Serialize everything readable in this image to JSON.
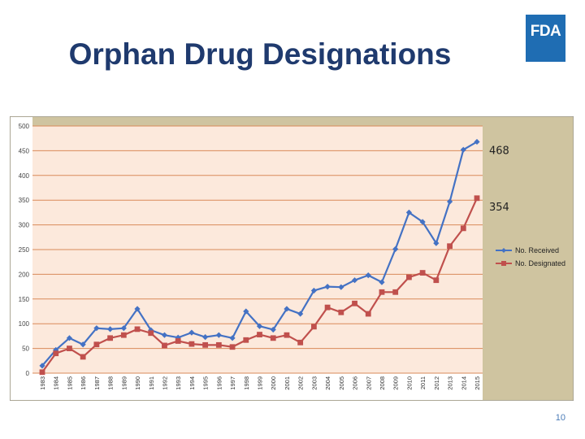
{
  "page": {
    "title": "Orphan Drug Designations",
    "logo_text": "FDA",
    "page_number": "10"
  },
  "colors": {
    "title": "#1f3a6e",
    "logo_bg": "#1f6db3",
    "frame_bg": "#cfc4a0",
    "plot_bg": "#fce9dc",
    "gridline": "#d98a5a",
    "received": "#4472c4",
    "designated": "#c0504d"
  },
  "chart_data": {
    "type": "line",
    "title": "",
    "xlabel": "",
    "ylabel": "",
    "ylim": [
      0,
      500
    ],
    "yticks": [
      0,
      50,
      100,
      150,
      200,
      250,
      300,
      350,
      400,
      450,
      500
    ],
    "grid": true,
    "legend": "right",
    "categories": [
      "1983",
      "1984",
      "1985",
      "1986",
      "1987",
      "1988",
      "1989",
      "1990",
      "1991",
      "1992",
      "1993",
      "1994",
      "1995",
      "1996",
      "1997",
      "1998",
      "1999",
      "2000",
      "2001",
      "2002",
      "2003",
      "2004",
      "2005",
      "2006",
      "2007",
      "2008",
      "2009",
      "2010",
      "2011",
      "2012",
      "2013",
      "2014",
      "2015"
    ],
    "series": [
      {
        "name": "No. Received",
        "marker": "diamond",
        "values": [
          15,
          47,
          71,
          58,
          91,
          89,
          91,
          130,
          87,
          77,
          72,
          82,
          73,
          77,
          71,
          125,
          95,
          88,
          130,
          120,
          167,
          175,
          174,
          188,
          198,
          184,
          251,
          325,
          306,
          263,
          347,
          452,
          468
        ]
      },
      {
        "name": "No. Designated",
        "marker": "square",
        "values": [
          2,
          40,
          50,
          33,
          58,
          71,
          77,
          89,
          81,
          56,
          65,
          59,
          57,
          57,
          53,
          67,
          78,
          71,
          77,
          62,
          94,
          133,
          123,
          141,
          120,
          164,
          164,
          194,
          203,
          188,
          257,
          293,
          354
        ]
      }
    ],
    "annotations": [
      "468",
      "354"
    ]
  }
}
